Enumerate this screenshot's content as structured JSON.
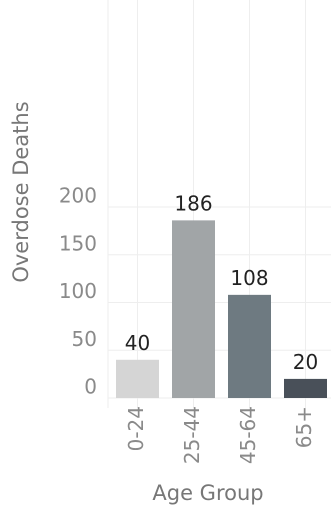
{
  "chart_data": {
    "type": "bar",
    "title": "",
    "xlabel": "Age Group",
    "ylabel": "Overdose Deaths",
    "categories": [
      "0-24",
      "25-44",
      "45-64",
      "65+"
    ],
    "values": [
      40,
      186,
      108,
      20
    ],
    "data_labels": [
      "40",
      "186",
      "108",
      "20"
    ],
    "colors": [
      "#d5d5d5",
      "#a1a5a7",
      "#6e7a81",
      "#495059"
    ],
    "ylim": [
      0,
      200
    ],
    "yticks": [
      0,
      50,
      100,
      150,
      200
    ],
    "grid": true,
    "legend": "none"
  }
}
